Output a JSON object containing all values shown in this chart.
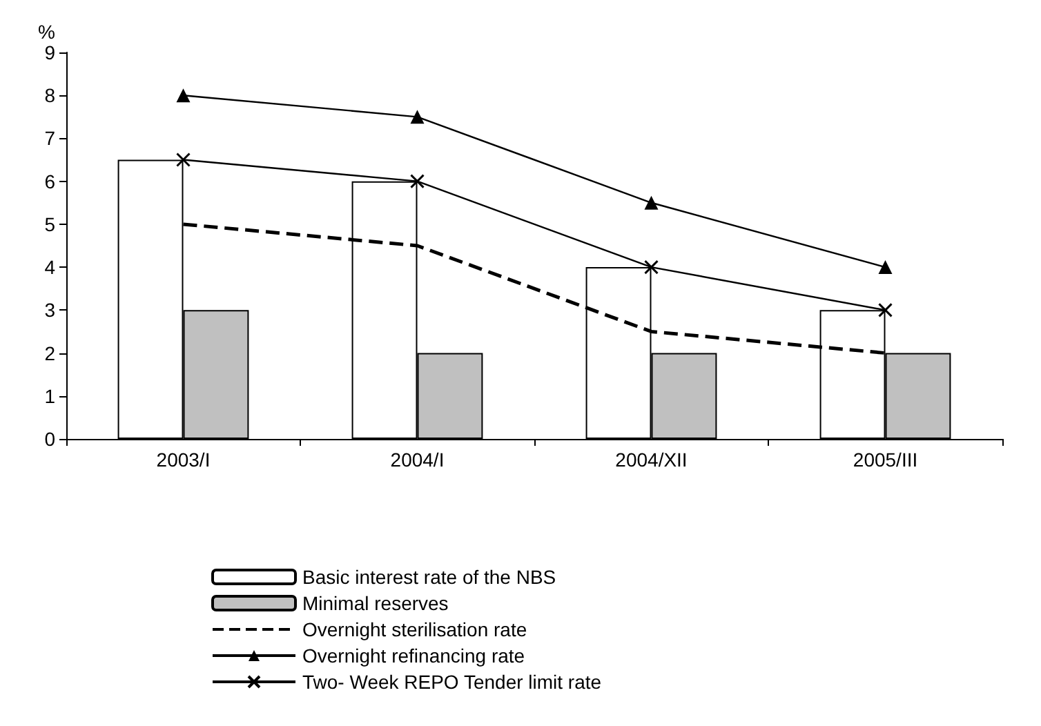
{
  "chart_data": {
    "type": "bar",
    "ylabel": "%",
    "categories": [
      "2003/I",
      "2004/I",
      "2004/XII",
      "2005/III"
    ],
    "ylim": [
      0,
      9
    ],
    "yticks": [
      0,
      1,
      2,
      3,
      4,
      5,
      6,
      7,
      8,
      9
    ],
    "grid": false,
    "legend": "bottom",
    "series": [
      {
        "name": "Basic interest rate of the NBS",
        "color": "#ffffff",
        "values": [
          6.5,
          6,
          4,
          3
        ]
      },
      {
        "name": "Minimal reserves",
        "color": "#c0c0c0",
        "values": [
          3,
          2,
          2,
          2
        ]
      },
      {
        "name": "Overnight sterilisation rate",
        "type": "line",
        "color": "#000000",
        "line_style": "dashed",
        "marker": "none",
        "values": [
          5,
          4.5,
          2.5,
          2
        ]
      },
      {
        "name": "Overnight refinancing rate",
        "type": "line",
        "color": "#000000",
        "line_style": "solid",
        "marker": "triangle",
        "values": [
          8,
          7.5,
          5.5,
          4
        ]
      },
      {
        "name": "Two- Week REPO Tender limit rate",
        "type": "line",
        "color": "#000000",
        "line_style": "solid",
        "marker": "cross",
        "values": [
          6.5,
          6,
          4,
          3
        ]
      }
    ]
  }
}
